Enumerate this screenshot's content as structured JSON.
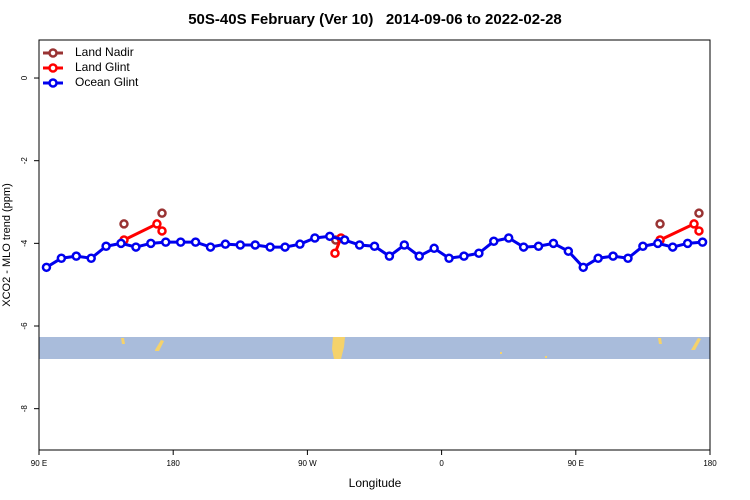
{
  "chart_data": {
    "type": "line",
    "title": "50S-40S February (Ver 10)   2014-09-06 to 2022-02-28",
    "xlabel": "Longitude",
    "ylabel": "XCO2 - MLO trend (ppm)",
    "xlim": [
      90,
      540
    ],
    "ylim": [
      -9,
      0.92
    ],
    "xticks": [
      {
        "value": 90,
        "label": "90 E"
      },
      {
        "value": 180,
        "label": "180"
      },
      {
        "value": 270,
        "label": "90 W"
      },
      {
        "value": 360,
        "label": "0"
      },
      {
        "value": 450,
        "label": "90 E"
      },
      {
        "value": 540,
        "label": "180"
      }
    ],
    "yticks": [
      0,
      -2,
      -4,
      -6,
      -8
    ],
    "legend": "top-left",
    "series": [
      {
        "name": "Land Nadir",
        "color": "#993333",
        "x": [
          147,
          null,
          172.5,
          null,
          289,
          null,
          506.5,
          null,
          532.6
        ],
        "values": [
          -3.53,
          null,
          -3.27,
          null,
          -3.92,
          null,
          -3.53,
          null,
          -3.27
        ]
      },
      {
        "name": "Land Glint",
        "color": "#ff0000",
        "x": [
          147,
          169.1,
          172.5,
          null,
          288.5,
          292.5,
          null,
          506.5,
          529.3,
          532.6
        ],
        "values": [
          -3.92,
          -3.53,
          -3.7,
          null,
          -4.24,
          -3.87,
          null,
          -3.92,
          -3.53,
          -3.7
        ]
      },
      {
        "name": "Ocean Glint",
        "color": "#0000ee",
        "x": [
          95,
          105,
          115,
          125,
          135,
          145,
          155,
          165,
          175,
          185,
          195,
          205,
          215,
          225,
          235,
          245,
          255,
          265,
          275,
          285,
          295,
          305,
          315,
          325,
          335,
          345,
          355,
          365,
          375,
          385,
          395,
          405,
          415,
          425,
          435,
          445,
          455,
          465,
          475,
          485,
          495,
          505,
          515,
          525,
          535
        ],
        "values": [
          -4.58,
          -4.36,
          -4.31,
          -4.36,
          -4.07,
          -4.0,
          -4.09,
          -4.0,
          -3.97,
          -3.97,
          -3.97,
          -4.09,
          -4.02,
          -4.04,
          -4.04,
          -4.09,
          -4.09,
          -4.02,
          -3.87,
          -3.83,
          -3.92,
          -4.04,
          -4.07,
          -4.31,
          -4.04,
          -4.31,
          -4.12,
          -4.36,
          -4.31,
          -4.24,
          -3.95,
          -3.87,
          -4.09,
          -4.07,
          -4.0,
          -4.19,
          -4.58,
          -4.36,
          -4.31,
          -4.36,
          -4.07,
          -4.0,
          -4.09,
          -4.0,
          -3.97
        ]
      }
    ]
  }
}
